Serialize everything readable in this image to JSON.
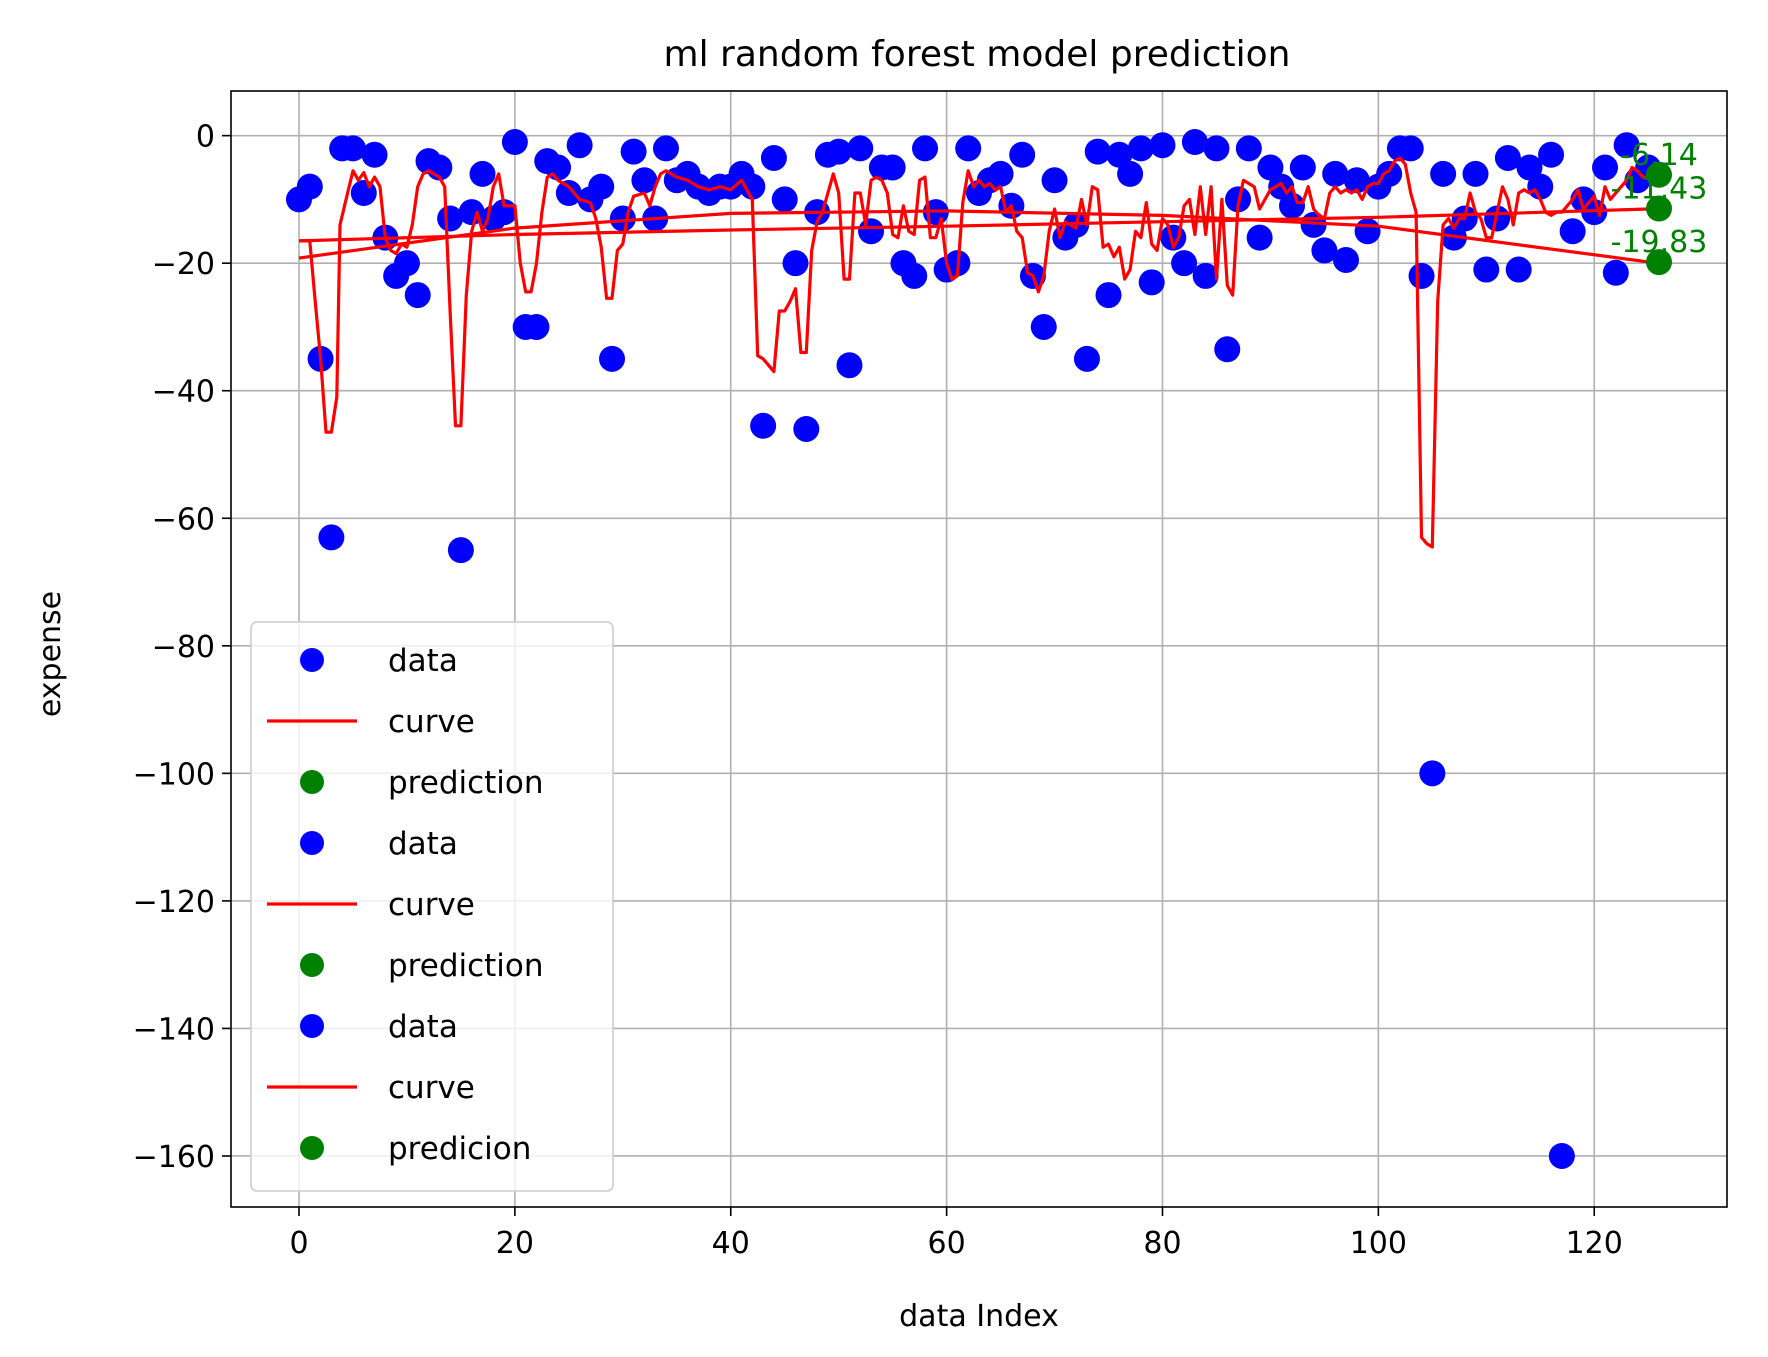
{
  "chart_data": {
    "type": "scatter",
    "title": "ml random forest model prediction",
    "xlabel": "data Index",
    "ylabel": "expense",
    "xlim": [
      -6.3,
      132.3
    ],
    "ylim": [
      -168,
      7
    ],
    "grid": true,
    "xticks": [
      0,
      20,
      40,
      60,
      80,
      100,
      120
    ],
    "yticks": [
      0,
      -20,
      -40,
      -60,
      -80,
      -100,
      -120,
      -140,
      -160
    ],
    "colors": {
      "data": "#0000ff",
      "curve": "#ff0000",
      "prediction": "#008000"
    },
    "legend": {
      "position": "lower-left",
      "entries": [
        {
          "label": "data",
          "kind": "dot",
          "color": "#0000ff"
        },
        {
          "label": "curve",
          "kind": "line",
          "color": "#ff0000"
        },
        {
          "label": "prediction",
          "kind": "dot",
          "color": "#008000"
        },
        {
          "label": "data",
          "kind": "dot",
          "color": "#0000ff"
        },
        {
          "label": "curve",
          "kind": "line",
          "color": "#ff0000"
        },
        {
          "label": "prediction",
          "kind": "dot",
          "color": "#008000"
        },
        {
          "label": "data",
          "kind": "dot",
          "color": "#0000ff"
        },
        {
          "label": "curve",
          "kind": "line",
          "color": "#ff0000"
        },
        {
          "label": "predicion",
          "kind": "dot",
          "color": "#008000"
        }
      ]
    },
    "data_points": [
      [
        0,
        -10
      ],
      [
        1,
        -8
      ],
      [
        2,
        -35
      ],
      [
        3,
        -63
      ],
      [
        4,
        -2
      ],
      [
        5,
        -2
      ],
      [
        6,
        -9
      ],
      [
        7,
        -3
      ],
      [
        8,
        -16
      ],
      [
        9,
        -22
      ],
      [
        10,
        -20
      ],
      [
        11,
        -25
      ],
      [
        12,
        -4
      ],
      [
        13,
        -5
      ],
      [
        14,
        -13
      ],
      [
        15,
        -65
      ],
      [
        16,
        -12
      ],
      [
        17,
        -6
      ],
      [
        18,
        -13
      ],
      [
        19,
        -12
      ],
      [
        20,
        -1
      ],
      [
        21,
        -30
      ],
      [
        22,
        -30
      ],
      [
        23,
        -4
      ],
      [
        24,
        -5
      ],
      [
        25,
        -9
      ],
      [
        26,
        -1.5
      ],
      [
        27,
        -10
      ],
      [
        28,
        -8
      ],
      [
        29,
        -35
      ],
      [
        30,
        -13
      ],
      [
        31,
        -2.5
      ],
      [
        32,
        -7
      ],
      [
        33,
        -13
      ],
      [
        34,
        -2
      ],
      [
        35,
        -7
      ],
      [
        36,
        -6
      ],
      [
        37,
        -8
      ],
      [
        38,
        -9
      ],
      [
        39,
        -8
      ],
      [
        40,
        -8
      ],
      [
        41,
        -6
      ],
      [
        42,
        -8
      ],
      [
        43,
        -45.5
      ],
      [
        44,
        -3.5
      ],
      [
        45,
        -10
      ],
      [
        46,
        -20
      ],
      [
        47,
        -46
      ],
      [
        48,
        -12
      ],
      [
        49,
        -3
      ],
      [
        50,
        -2.5
      ],
      [
        51,
        -36
      ],
      [
        52,
        -2
      ],
      [
        53,
        -15
      ],
      [
        54,
        -5
      ],
      [
        55,
        -5
      ],
      [
        56,
        -20
      ],
      [
        57,
        -22
      ],
      [
        58,
        -2
      ],
      [
        59,
        -12
      ],
      [
        60,
        -21
      ],
      [
        61,
        -20
      ],
      [
        62,
        -2
      ],
      [
        63,
        -9
      ],
      [
        64,
        -7
      ],
      [
        65,
        -6
      ],
      [
        66,
        -11
      ],
      [
        67,
        -3
      ],
      [
        68,
        -22
      ],
      [
        69,
        -30
      ],
      [
        70,
        -7
      ],
      [
        71,
        -16
      ],
      [
        72,
        -14
      ],
      [
        73,
        -35
      ],
      [
        74,
        -2.5
      ],
      [
        75,
        -25
      ],
      [
        76,
        -3
      ],
      [
        77,
        -6
      ],
      [
        78,
        -2
      ],
      [
        79,
        -23
      ],
      [
        80,
        -1.5
      ],
      [
        81,
        -16
      ],
      [
        82,
        -20
      ],
      [
        83,
        -1
      ],
      [
        84,
        -22
      ],
      [
        85,
        -2
      ],
      [
        86,
        -33.5
      ],
      [
        87,
        -10
      ],
      [
        88,
        -2
      ],
      [
        89,
        -16
      ],
      [
        90,
        -5
      ],
      [
        91,
        -8
      ],
      [
        92,
        -11
      ],
      [
        93,
        -5
      ],
      [
        94,
        -14
      ],
      [
        95,
        -18
      ],
      [
        96,
        -6
      ],
      [
        97,
        -19.5
      ],
      [
        98,
        -7
      ],
      [
        99,
        -15
      ],
      [
        100,
        -8
      ],
      [
        101,
        -6
      ],
      [
        102,
        -2
      ],
      [
        103,
        -2
      ],
      [
        104,
        -22
      ],
      [
        105,
        -100
      ],
      [
        106,
        -6
      ],
      [
        107,
        -16
      ],
      [
        108,
        -13
      ],
      [
        109,
        -6
      ],
      [
        110,
        -21
      ],
      [
        111,
        -13
      ],
      [
        112,
        -3.5
      ],
      [
        113,
        -21
      ],
      [
        114,
        -5
      ],
      [
        115,
        -8
      ],
      [
        116,
        -3
      ],
      [
        117,
        -160
      ],
      [
        118,
        -15
      ],
      [
        119,
        -10
      ],
      [
        120,
        -12
      ],
      [
        121,
        -5
      ],
      [
        122,
        -21.5
      ],
      [
        123,
        -1.5
      ],
      [
        124,
        -7
      ],
      [
        125,
        -5
      ]
    ],
    "step_curve": [
      [
        0,
        -16.5
      ],
      [
        1,
        -16.5
      ],
      [
        1.5,
        -26
      ],
      [
        2,
        -35
      ],
      [
        2.5,
        -46.5
      ],
      [
        3,
        -46.5
      ],
      [
        3.5,
        -41
      ],
      [
        3.8,
        -14
      ],
      [
        4.5,
        -9
      ],
      [
        5,
        -5.5
      ],
      [
        5.5,
        -7
      ],
      [
        6,
        -5.8
      ],
      [
        6.5,
        -8
      ],
      [
        7,
        -6.5
      ],
      [
        7.5,
        -8
      ],
      [
        8,
        -16
      ],
      [
        8.5,
        -18
      ],
      [
        9,
        -18.5
      ],
      [
        9.5,
        -17
      ],
      [
        10,
        -17.5
      ],
      [
        10.5,
        -14
      ],
      [
        11,
        -8
      ],
      [
        11.5,
        -6
      ],
      [
        12,
        -5.5
      ],
      [
        12.5,
        -6
      ],
      [
        13,
        -6.5
      ],
      [
        13.5,
        -8
      ],
      [
        14,
        -27.5
      ],
      [
        14.5,
        -45.5
      ],
      [
        15,
        -45.5
      ],
      [
        15.5,
        -25
      ],
      [
        16,
        -15
      ],
      [
        16.5,
        -12
      ],
      [
        17,
        -15
      ],
      [
        17.5,
        -13
      ],
      [
        18,
        -8
      ],
      [
        18.5,
        -6
      ],
      [
        19,
        -11
      ],
      [
        19.5,
        -11
      ],
      [
        20,
        -11
      ],
      [
        20.5,
        -20
      ],
      [
        21,
        -24.5
      ],
      [
        21.5,
        -24.5
      ],
      [
        22,
        -20
      ],
      [
        22.5,
        -12
      ],
      [
        23,
        -6.5
      ],
      [
        23.5,
        -6
      ],
      [
        24,
        -7
      ],
      [
        24.5,
        -7.5
      ],
      [
        25,
        -8
      ],
      [
        26,
        -10
      ],
      [
        27,
        -10.5
      ],
      [
        27.5,
        -13
      ],
      [
        28,
        -17.5
      ],
      [
        28.5,
        -25.5
      ],
      [
        29,
        -25.5
      ],
      [
        29.5,
        -18
      ],
      [
        30,
        -17
      ],
      [
        30.5,
        -12
      ],
      [
        31,
        -9.5
      ],
      [
        32,
        -9
      ],
      [
        32.5,
        -11
      ],
      [
        33,
        -8
      ],
      [
        33.5,
        -6
      ],
      [
        34,
        -5.5
      ],
      [
        35,
        -6.5
      ],
      [
        36,
        -7
      ],
      [
        37,
        -8
      ],
      [
        38,
        -8.5
      ],
      [
        39,
        -8
      ],
      [
        40,
        -8.5
      ],
      [
        41,
        -7
      ],
      [
        42,
        -10
      ],
      [
        42.5,
        -34.5
      ],
      [
        43,
        -35
      ],
      [
        43.5,
        -36
      ],
      [
        44,
        -37
      ],
      [
        44.5,
        -27.5
      ],
      [
        45,
        -27.5
      ],
      [
        45.5,
        -26
      ],
      [
        46,
        -24
      ],
      [
        46.5,
        -34
      ],
      [
        47,
        -34
      ],
      [
        47.5,
        -18
      ],
      [
        48,
        -13.5
      ],
      [
        48.5,
        -12
      ],
      [
        49,
        -9
      ],
      [
        49.5,
        -6
      ],
      [
        50,
        -9
      ],
      [
        50.5,
        -22.5
      ],
      [
        51,
        -22.5
      ],
      [
        51.5,
        -9
      ],
      [
        52,
        -9
      ],
      [
        52.5,
        -14
      ],
      [
        53,
        -7
      ],
      [
        53.5,
        -6.5
      ],
      [
        54,
        -7
      ],
      [
        54.5,
        -9
      ],
      [
        55,
        -15.5
      ],
      [
        55.5,
        -16
      ],
      [
        56,
        -11
      ],
      [
        56.5,
        -15
      ],
      [
        57,
        -15.5
      ],
      [
        57.5,
        -7
      ],
      [
        58,
        -6.5
      ],
      [
        58.5,
        -16
      ],
      [
        59,
        -16
      ],
      [
        59.5,
        -13
      ],
      [
        60,
        -20
      ],
      [
        60.5,
        -22.5
      ],
      [
        61,
        -22
      ],
      [
        61.5,
        -10.5
      ],
      [
        62,
        -5.5
      ],
      [
        62.5,
        -8
      ],
      [
        63,
        -7
      ],
      [
        63.5,
        -8
      ],
      [
        64,
        -7.5
      ],
      [
        64.5,
        -8.5
      ],
      [
        65,
        -8
      ],
      [
        65.5,
        -12
      ],
      [
        66,
        -11
      ],
      [
        66.5,
        -15
      ],
      [
        67,
        -16
      ],
      [
        67.5,
        -21.5
      ],
      [
        68,
        -22
      ],
      [
        68.5,
        -24.5
      ],
      [
        69,
        -22
      ],
      [
        69.5,
        -15
      ],
      [
        70,
        -11.5
      ],
      [
        70.5,
        -16
      ],
      [
        71,
        -13.5
      ],
      [
        72,
        -14.5
      ],
      [
        72.5,
        -10
      ],
      [
        73,
        -14
      ],
      [
        73.5,
        -8
      ],
      [
        74,
        -8.5
      ],
      [
        74.5,
        -17.5
      ],
      [
        75,
        -17
      ],
      [
        75.5,
        -19
      ],
      [
        76,
        -17.5
      ],
      [
        76.5,
        -22.5
      ],
      [
        77,
        -21
      ],
      [
        77.5,
        -15
      ],
      [
        78,
        -16
      ],
      [
        78.5,
        -10.5
      ],
      [
        79,
        -17
      ],
      [
        79.5,
        -18
      ],
      [
        80,
        -13
      ],
      [
        80.5,
        -14
      ],
      [
        81,
        -17.5
      ],
      [
        81.5,
        -16
      ],
      [
        82,
        -11
      ],
      [
        82.5,
        -10
      ],
      [
        83,
        -15.5
      ],
      [
        83.5,
        -8
      ],
      [
        84,
        -15.5
      ],
      [
        84.5,
        -8
      ],
      [
        85,
        -22.5
      ],
      [
        85.5,
        -10
      ],
      [
        86,
        -23.5
      ],
      [
        86.5,
        -25
      ],
      [
        87,
        -11
      ],
      [
        87.5,
        -7
      ],
      [
        88,
        -7.5
      ],
      [
        88.5,
        -8
      ],
      [
        89,
        -11.5
      ],
      [
        89.5,
        -10
      ],
      [
        90,
        -8.5
      ],
      [
        90.5,
        -8
      ],
      [
        91,
        -7.5
      ],
      [
        91.5,
        -9
      ],
      [
        92,
        -8
      ],
      [
        92.5,
        -10.5
      ],
      [
        93,
        -10.5
      ],
      [
        93.5,
        -8
      ],
      [
        94,
        -11.5
      ],
      [
        94.5,
        -12.5
      ],
      [
        95,
        -13
      ],
      [
        95.5,
        -9
      ],
      [
        96,
        -8
      ],
      [
        96.5,
        -9
      ],
      [
        97,
        -8.5
      ],
      [
        97.5,
        -9
      ],
      [
        98,
        -8.5
      ],
      [
        98.5,
        -10
      ],
      [
        99,
        -8
      ],
      [
        99.5,
        -7.5
      ],
      [
        100,
        -7.5
      ],
      [
        100.5,
        -6
      ],
      [
        101,
        -5.5
      ],
      [
        101.5,
        -4
      ],
      [
        102,
        -3.5
      ],
      [
        102.5,
        -4.5
      ],
      [
        103,
        -9
      ],
      [
        103.5,
        -12
      ],
      [
        104,
        -63
      ],
      [
        104.5,
        -64
      ],
      [
        105,
        -64.5
      ],
      [
        105.5,
        -26
      ],
      [
        106,
        -14
      ],
      [
        106.5,
        -13
      ],
      [
        107,
        -14.5
      ],
      [
        107.5,
        -13
      ],
      [
        108,
        -13
      ],
      [
        108.5,
        -9
      ],
      [
        109,
        -12
      ],
      [
        109.5,
        -13
      ],
      [
        110,
        -16
      ],
      [
        110.5,
        -16
      ],
      [
        111,
        -12
      ],
      [
        111.5,
        -8
      ],
      [
        112,
        -10
      ],
      [
        112.5,
        -14
      ],
      [
        113,
        -9
      ],
      [
        113.5,
        -8.5
      ],
      [
        114,
        -9
      ],
      [
        114.5,
        -8.5
      ],
      [
        115,
        -10
      ],
      [
        115.5,
        -12
      ],
      [
        116,
        -12.5
      ],
      [
        116.5,
        -12
      ],
      [
        117,
        -12
      ],
      [
        117.5,
        -11
      ],
      [
        118,
        -10
      ],
      [
        118.5,
        -8.5
      ],
      [
        119,
        -11.5
      ],
      [
        119.5,
        -10.5
      ],
      [
        120,
        -9.5
      ],
      [
        120.5,
        -12.5
      ],
      [
        121,
        -8
      ],
      [
        121.5,
        -10
      ],
      [
        122,
        -9
      ],
      [
        122.5,
        -8
      ],
      [
        123,
        -7
      ],
      [
        123.5,
        -5
      ],
      [
        124,
        -5.5
      ],
      [
        124.5,
        -6.5
      ],
      [
        125,
        -6.5
      ]
    ],
    "fit_curves": [
      [
        [
          0,
          -16.5
        ],
        [
          20,
          -15.5
        ],
        [
          40,
          -14.8
        ],
        [
          60,
          -14.2
        ],
        [
          80,
          -13.5
        ],
        [
          100,
          -12.8
        ],
        [
          125,
          -11.5
        ]
      ],
      [
        [
          0,
          -19.2
        ],
        [
          20,
          -14.5
        ],
        [
          40,
          -12.2
        ],
        [
          60,
          -11.8
        ],
        [
          80,
          -12.5
        ],
        [
          100,
          -14.2
        ],
        [
          125,
          -19.8
        ]
      ]
    ],
    "predictions": [
      {
        "x": 126,
        "y": -6.14,
        "label": "-6.14"
      },
      {
        "x": 126,
        "y": -11.43,
        "label": "-11.43"
      },
      {
        "x": 126,
        "y": -19.83,
        "label": "-19.83"
      }
    ]
  }
}
